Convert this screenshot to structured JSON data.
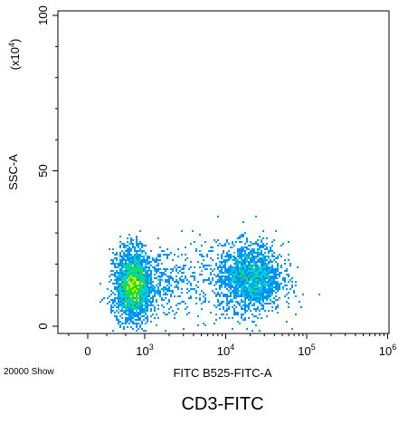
{
  "chart_data": {
    "type": "scatter",
    "subtype": "flow-cytometry-density-dot-plot",
    "title": "CD3-FITC",
    "xlabel": "FITC B525-FITC-A",
    "ylabel": "SSC-A",
    "y_multiplier_label": "(x10",
    "y_multiplier_exp": "4",
    "y_multiplier_close": ")",
    "event_count_label": "20000 Show",
    "x_scale": "biexponential",
    "x_ticks": [
      {
        "value": 0,
        "base": "0",
        "exp": ""
      },
      {
        "value": 1000,
        "base": "10",
        "exp": "3"
      },
      {
        "value": 10000,
        "base": "10",
        "exp": "4"
      },
      {
        "value": 100000,
        "base": "10",
        "exp": "5"
      },
      {
        "value": 1000000,
        "base": "10",
        "exp": "6"
      }
    ],
    "y_ticks": [
      {
        "value": 0,
        "label": "0"
      },
      {
        "value": 50,
        "label": "50"
      },
      {
        "value": 100,
        "label": "100"
      }
    ],
    "ylim": [
      0,
      100
    ],
    "grid": false,
    "legend": "none",
    "colormap": [
      "#1010c8",
      "#0090ff",
      "#00d0d0",
      "#20e020",
      "#f0f000"
    ],
    "populations": [
      {
        "name": "",
        "x_center_log": 2.45,
        "x_spread_log": 0.45,
        "y_center": 13,
        "y_spread": 5.5,
        "events": 11000
      },
      {
        "name": "",
        "x_center_log": 4.3,
        "x_spread_log": 0.2,
        "y_center": 15.5,
        "y_spread": 5.5,
        "events": 8000
      },
      {
        "name": "",
        "x_center_log": 3.55,
        "x_spread_log": 0.35,
        "y_center": 15,
        "y_spread": 6,
        "events": 1000
      }
    ]
  }
}
